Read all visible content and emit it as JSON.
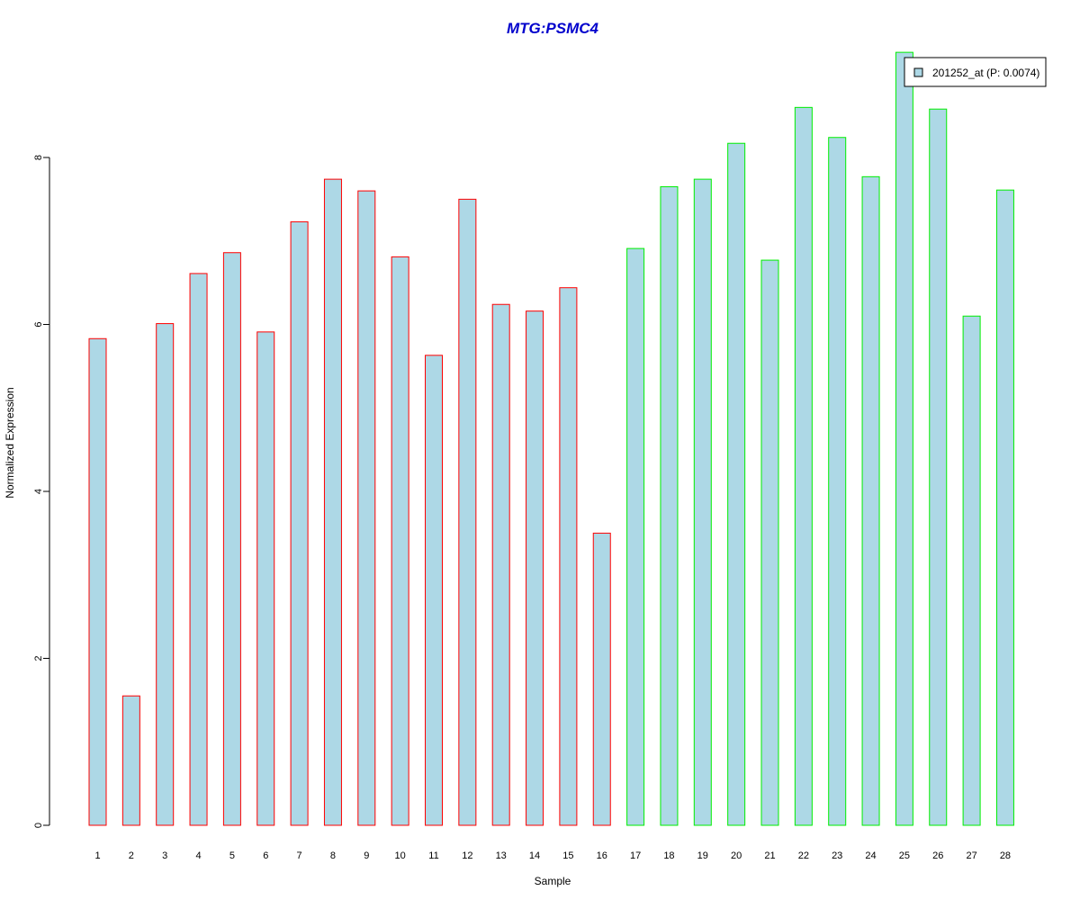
{
  "chart_data": {
    "type": "bar",
    "title": "MTG:PSMC4",
    "title_color": "#0000CC",
    "xlabel": "Sample",
    "ylabel": "Normalized Expression",
    "ylim": [
      0,
      9.3
    ],
    "yticks": [
      0,
      2,
      4,
      6,
      8
    ],
    "grid": false,
    "legend_position": "top-right",
    "categories": [
      "1",
      "2",
      "3",
      "4",
      "5",
      "6",
      "7",
      "8",
      "9",
      "10",
      "11",
      "12",
      "13",
      "14",
      "15",
      "16",
      "17",
      "18",
      "19",
      "20",
      "21",
      "22",
      "23",
      "24",
      "25",
      "26",
      "27",
      "28"
    ],
    "series": [
      {
        "name": "201252_at (P: 0.0074)",
        "fill": "#ADD8E6",
        "values": [
          5.83,
          1.55,
          6.01,
          6.61,
          6.86,
          5.91,
          7.23,
          7.74,
          7.6,
          6.81,
          5.63,
          7.5,
          6.24,
          6.16,
          6.44,
          3.5,
          6.91,
          7.65,
          7.74,
          8.17,
          6.77,
          8.6,
          8.24,
          7.77,
          9.26,
          8.58,
          6.1,
          7.61
        ]
      }
    ],
    "border_colors": {
      "group_1": "#FF0000",
      "group_2": "#00EE00"
    },
    "groups": [
      1,
      1,
      1,
      1,
      1,
      1,
      1,
      1,
      1,
      1,
      1,
      1,
      1,
      1,
      1,
      1,
      2,
      2,
      2,
      2,
      2,
      2,
      2,
      2,
      2,
      2,
      2,
      2
    ]
  }
}
